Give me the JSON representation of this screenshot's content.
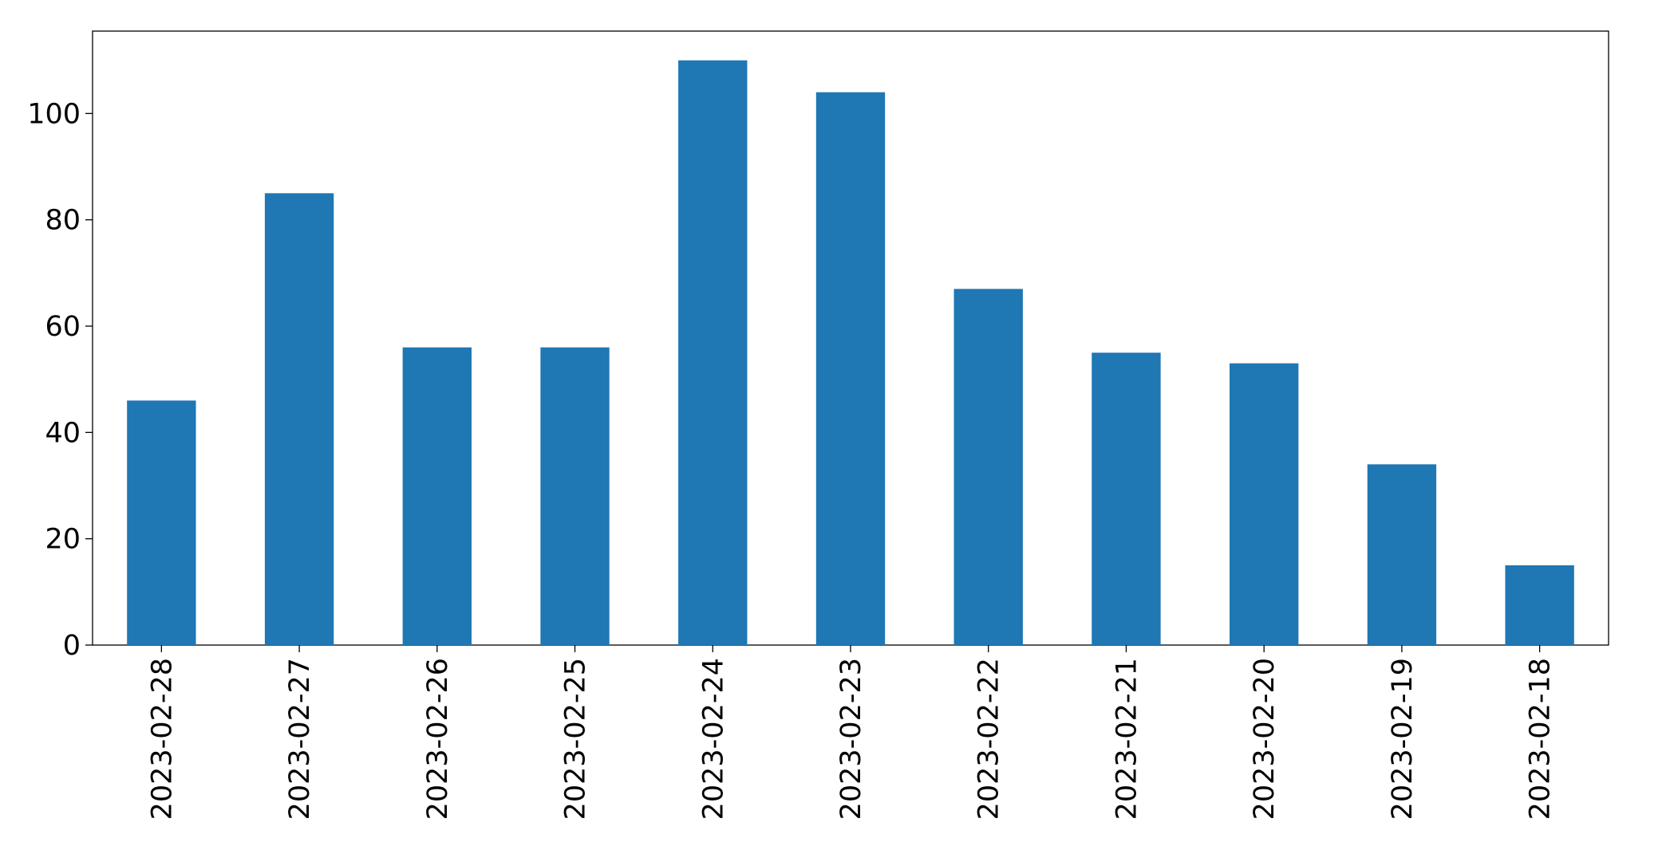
{
  "chart_data": {
    "type": "bar",
    "categories": [
      "2023-02-28",
      "2023-02-27",
      "2023-02-26",
      "2023-02-25",
      "2023-02-24",
      "2023-02-23",
      "2023-02-22",
      "2023-02-21",
      "2023-02-20",
      "2023-02-19",
      "2023-02-18"
    ],
    "values": [
      46,
      85,
      56,
      56,
      110,
      104,
      67,
      55,
      53,
      34,
      15
    ],
    "color": "#1f77b4",
    "ylim": [
      0,
      115.5
    ],
    "yticks": [
      0,
      20,
      40,
      60,
      80,
      100
    ],
    "grid": false
  }
}
